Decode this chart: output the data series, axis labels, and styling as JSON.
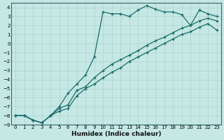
{
  "xlabel": "Humidex (Indice chaleur)",
  "bg_color": "#c5e8e5",
  "line_color": "#1a6b6b",
  "grid_color": "#b0d5d0",
  "xlim": [
    -0.5,
    23.5
  ],
  "ylim": [
    -9,
    4.5
  ],
  "xticks": [
    0,
    1,
    2,
    3,
    4,
    5,
    6,
    7,
    8,
    9,
    10,
    11,
    12,
    13,
    14,
    15,
    16,
    17,
    18,
    19,
    20,
    21,
    22,
    23
  ],
  "yticks": [
    4,
    3,
    2,
    1,
    0,
    -1,
    -2,
    -3,
    -4,
    -5,
    -6,
    -7,
    -8,
    -9
  ],
  "line1_x": [
    0,
    1,
    2,
    3,
    4,
    5,
    6,
    7,
    8,
    9,
    10,
    11,
    12,
    13,
    14,
    15,
    16,
    17,
    18,
    19,
    20,
    21,
    22,
    23
  ],
  "line1_y": [
    -8,
    -8,
    -8.5,
    -8.8,
    -8,
    -7,
    -5.5,
    -4.5,
    -3.5,
    -1.5,
    3.5,
    3.3,
    3.3,
    3.0,
    3.7,
    4.2,
    3.8,
    3.5,
    3.5,
    3.2,
    2.0,
    3.7,
    3.3,
    3.0
  ],
  "line2_x": [
    0,
    1,
    2,
    3,
    4,
    5,
    6,
    7,
    8,
    9,
    10,
    11,
    12,
    13,
    14,
    15,
    16,
    17,
    18,
    19,
    20,
    21,
    22,
    23
  ],
  "line2_y": [
    -8,
    -8,
    -8.5,
    -8.8,
    -8,
    -7.2,
    -6.8,
    -5.2,
    -4.8,
    -3.8,
    -3.0,
    -2.3,
    -1.8,
    -1.3,
    -0.8,
    -0.2,
    0.3,
    0.7,
    1.2,
    1.7,
    2.0,
    2.5,
    2.8,
    2.5
  ],
  "line3_x": [
    0,
    1,
    2,
    3,
    4,
    5,
    6,
    7,
    8,
    9,
    10,
    11,
    12,
    13,
    14,
    15,
    16,
    17,
    18,
    19,
    20,
    21,
    22,
    23
  ],
  "line3_y": [
    -8,
    -8,
    -8.5,
    -8.8,
    -8,
    -7.5,
    -7.2,
    -5.8,
    -5.0,
    -4.5,
    -3.8,
    -3.2,
    -2.7,
    -2.0,
    -1.5,
    -1.0,
    -0.5,
    0.0,
    0.5,
    1.0,
    1.3,
    1.8,
    2.2,
    1.5
  ]
}
